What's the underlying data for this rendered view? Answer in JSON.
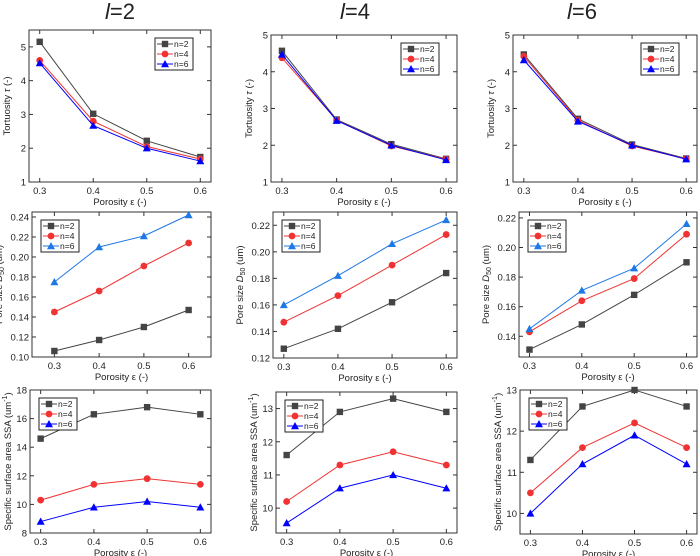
{
  "column_titles": [
    {
      "var": "l",
      "eq": "=2"
    },
    {
      "var": "l",
      "eq": "=4"
    },
    {
      "var": "l",
      "eq": "=6"
    }
  ],
  "series_names": [
    "n=2",
    "n=4",
    "n=6"
  ],
  "colors": {
    "n2": "#444444",
    "n4": "#f03232",
    "n6_dark": "#0000ff",
    "n6_light": "#1e78e6"
  },
  "xlabel": "Porosity ε (-)",
  "ylabels": {
    "tortuosity": {
      "pre": "Tortuosity ",
      "ital": "τ",
      "sub": "",
      "post": " (-)"
    },
    "pore": {
      "pre": "Pore size ",
      "ital": "D",
      "sub": "50",
      "post": " (um)"
    },
    "ssa": {
      "pre": "Specific surface area SSA (um",
      "ital": "",
      "sup": "-1",
      "post": ")"
    }
  },
  "chart_data": [
    {
      "type": "line",
      "id": "tort-l2",
      "ylabel_key": "tortuosity",
      "x": [
        0.3,
        0.4,
        0.5,
        0.6
      ],
      "xticks": [
        "0.3",
        "0.4",
        "0.5",
        "0.6"
      ],
      "xlim": [
        0.28,
        0.62
      ],
      "ylim": [
        1,
        5.5
      ],
      "yticks": [
        "1",
        "2",
        "3",
        "4",
        "5"
      ],
      "legend": "top-right",
      "n6_color": "n6_dark",
      "series": [
        {
          "name": "n=2",
          "values": [
            5.15,
            3.02,
            2.22,
            1.74
          ]
        },
        {
          "name": "n=4",
          "values": [
            4.6,
            2.8,
            2.05,
            1.68
          ]
        },
        {
          "name": "n=6",
          "values": [
            4.52,
            2.67,
            2.0,
            1.62
          ]
        }
      ]
    },
    {
      "type": "line",
      "id": "tort-l4",
      "ylabel_key": "tortuosity",
      "x": [
        0.3,
        0.4,
        0.5,
        0.6
      ],
      "xticks": [
        "0.3",
        "0.4",
        "0.5",
        "0.6"
      ],
      "xlim": [
        0.28,
        0.62
      ],
      "ylim": [
        1,
        5
      ],
      "yticks": [
        "1",
        "2",
        "3",
        "4",
        "5"
      ],
      "legend": "top-right",
      "n6_color": "n6_dark",
      "series": [
        {
          "name": "n=2",
          "values": [
            4.57,
            2.7,
            2.03,
            1.63
          ]
        },
        {
          "name": "n=4",
          "values": [
            4.38,
            2.68,
            1.98,
            1.62
          ]
        },
        {
          "name": "n=6",
          "values": [
            4.47,
            2.67,
            2.0,
            1.6
          ]
        }
      ]
    },
    {
      "type": "line",
      "id": "tort-l6",
      "ylabel_key": "tortuosity",
      "x": [
        0.3,
        0.4,
        0.5,
        0.6
      ],
      "xticks": [
        "0.3",
        "0.4",
        "0.5",
        "0.6"
      ],
      "xlim": [
        0.28,
        0.62
      ],
      "ylim": [
        1,
        5
      ],
      "yticks": [
        "1",
        "2",
        "3",
        "4",
        "5"
      ],
      "legend": "top-right",
      "n6_color": "n6_dark",
      "series": [
        {
          "name": "n=2",
          "values": [
            4.47,
            2.72,
            2.02,
            1.64
          ]
        },
        {
          "name": "n=4",
          "values": [
            4.42,
            2.68,
            1.98,
            1.63
          ]
        },
        {
          "name": "n=6",
          "values": [
            4.32,
            2.65,
            2.0,
            1.62
          ]
        }
      ]
    },
    {
      "type": "line",
      "id": "pore-l2",
      "ylabel_key": "pore",
      "x": [
        0.3,
        0.4,
        0.5,
        0.6
      ],
      "xticks": [
        "0.3",
        "0.4",
        "0.5",
        "0.6"
      ],
      "xlim": [
        0.25,
        0.65
      ],
      "ylim": [
        0.1,
        0.245
      ],
      "yticks": [
        "0.10",
        "0.12",
        "0.14",
        "0.16",
        "0.18",
        "0.20",
        "0.22",
        "0.24"
      ],
      "legend": "top-left",
      "n6_color": "n6_light",
      "series": [
        {
          "name": "n=2",
          "values": [
            0.106,
            0.117,
            0.13,
            0.147
          ]
        },
        {
          "name": "n=4",
          "values": [
            0.145,
            0.166,
            0.191,
            0.214
          ]
        },
        {
          "name": "n=6",
          "values": [
            0.175,
            0.21,
            0.221,
            0.242
          ]
        }
      ]
    },
    {
      "type": "line",
      "id": "pore-l4",
      "ylabel_key": "pore",
      "x": [
        0.3,
        0.4,
        0.5,
        0.6
      ],
      "xticks": [
        "0.3",
        "0.4",
        "0.5",
        "0.6"
      ],
      "xlim": [
        0.28,
        0.62
      ],
      "ylim": [
        0.12,
        0.23
      ],
      "yticks": [
        "0.12",
        "0.14",
        "0.16",
        "0.18",
        "0.20",
        "0.22"
      ],
      "legend": "top-left",
      "n6_color": "n6_light",
      "series": [
        {
          "name": "n=2",
          "values": [
            0.127,
            0.142,
            0.162,
            0.184
          ]
        },
        {
          "name": "n=4",
          "values": [
            0.147,
            0.167,
            0.19,
            0.213
          ]
        },
        {
          "name": "n=6",
          "values": [
            0.16,
            0.182,
            0.206,
            0.224
          ]
        }
      ]
    },
    {
      "type": "line",
      "id": "pore-l6",
      "ylabel_key": "pore",
      "x": [
        0.3,
        0.4,
        0.5,
        0.6
      ],
      "xticks": [
        "0.3",
        "0.4",
        "0.5",
        "0.6"
      ],
      "xlim": [
        0.28,
        0.62
      ],
      "ylim": [
        0.126,
        0.224
      ],
      "yticks": [
        "0.14",
        "0.16",
        "0.18",
        "0.20",
        "0.22"
      ],
      "legend": "top-left",
      "n6_color": "n6_light",
      "series": [
        {
          "name": "n=2",
          "values": [
            0.131,
            0.148,
            0.168,
            0.19
          ]
        },
        {
          "name": "n=4",
          "values": [
            0.143,
            0.164,
            0.179,
            0.209
          ]
        },
        {
          "name": "n=6",
          "values": [
            0.145,
            0.171,
            0.186,
            0.216
          ]
        }
      ]
    },
    {
      "type": "line",
      "id": "ssa-l2",
      "ylabel_key": "ssa",
      "x": [
        0.3,
        0.4,
        0.5,
        0.6
      ],
      "xticks": [
        "0.3",
        "0.4",
        "0.5",
        "0.6"
      ],
      "xlim": [
        0.28,
        0.62
      ],
      "ylim": [
        8,
        18
      ],
      "yticks": [
        "8",
        "10",
        "12",
        "14",
        "16",
        "18"
      ],
      "legend": "top-left",
      "n6_color": "n6_dark",
      "series": [
        {
          "name": "n=2",
          "values": [
            14.6,
            16.3,
            16.8,
            16.3
          ]
        },
        {
          "name": "n=4",
          "values": [
            10.3,
            11.4,
            11.8,
            11.4
          ]
        },
        {
          "name": "n=6",
          "values": [
            8.8,
            9.8,
            10.2,
            9.8
          ]
        }
      ]
    },
    {
      "type": "line",
      "id": "ssa-l4",
      "ylabel_key": "ssa",
      "x": [
        0.3,
        0.4,
        0.5,
        0.6
      ],
      "xticks": [
        "0.3",
        "0.4",
        "0.5",
        "0.6"
      ],
      "xlim": [
        0.28,
        0.62
      ],
      "ylim": [
        9.25,
        13.5
      ],
      "yticks": [
        "10",
        "11",
        "12",
        "13"
      ],
      "legend": "top-left",
      "n6_color": "n6_dark",
      "series": [
        {
          "name": "n=2",
          "values": [
            11.6,
            12.9,
            13.3,
            12.9
          ]
        },
        {
          "name": "n=4",
          "values": [
            10.2,
            11.3,
            11.7,
            11.3
          ]
        },
        {
          "name": "n=6",
          "values": [
            9.55,
            10.6,
            11.0,
            10.6
          ]
        }
      ]
    },
    {
      "type": "line",
      "id": "ssa-l6",
      "ylabel_key": "ssa",
      "x": [
        0.3,
        0.4,
        0.5,
        0.6
      ],
      "xticks": [
        "0.3",
        "0.4",
        "0.5",
        "0.6"
      ],
      "xlim": [
        0.28,
        0.62
      ],
      "ylim": [
        9.5,
        13
      ],
      "yticks": [
        "10",
        "11",
        "12",
        "13"
      ],
      "legend": "top-left",
      "n6_color": "n6_dark",
      "series": [
        {
          "name": "n=2",
          "values": [
            11.3,
            12.6,
            13.0,
            12.6
          ]
        },
        {
          "name": "n=4",
          "values": [
            10.5,
            11.6,
            12.2,
            11.6
          ]
        },
        {
          "name": "n=6",
          "values": [
            10.0,
            11.2,
            11.9,
            11.2
          ]
        }
      ]
    }
  ]
}
